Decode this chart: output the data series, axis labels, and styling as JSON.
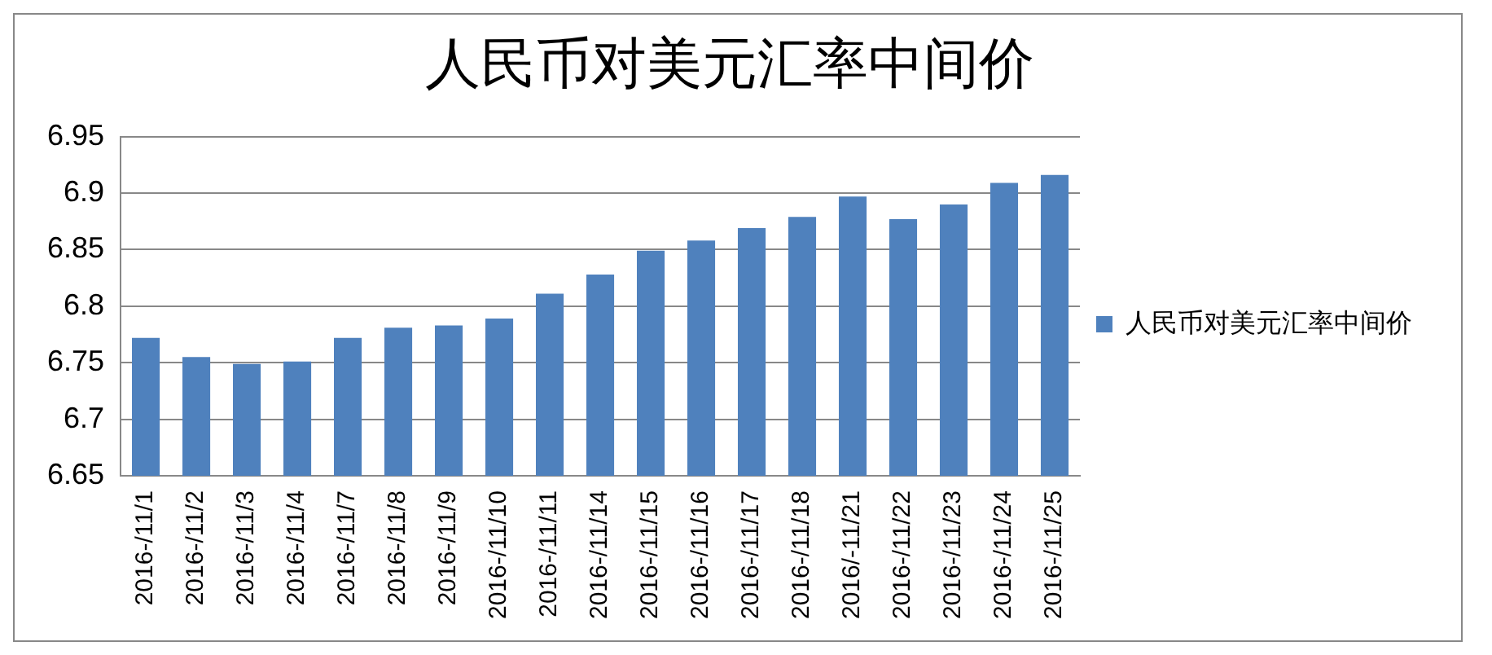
{
  "chart_data": {
    "type": "bar",
    "title": "人民币对美元汇率中间价",
    "categories": [
      "2016-/11/1",
      "2016-/11/2",
      "2016-/11/3",
      "2016-/11/4",
      "2016-/11/7",
      "2016-/11/8",
      "2016-/11/9",
      "2016-/11/10",
      "2016-/11/11",
      "2016-/11/14",
      "2016-/11/15",
      "2016-/11/16",
      "2016-/11/17",
      "2016-/11/18",
      "2016/-11/21",
      "2016-/11/22",
      "2016-/11/23",
      "2016-/11/24",
      "2016-/11/25"
    ],
    "series": [
      {
        "name": "人民币对美元汇率中间价",
        "color": "#4f81bd",
        "values": [
          6.772,
          6.755,
          6.749,
          6.751,
          6.772,
          6.781,
          6.783,
          6.789,
          6.811,
          6.828,
          6.849,
          6.858,
          6.869,
          6.879,
          6.897,
          6.877,
          6.89,
          6.909,
          6.916
        ]
      }
    ],
    "ylim": [
      6.65,
      6.95
    ],
    "yticks": [
      6.65,
      6.7,
      6.75,
      6.8,
      6.85,
      6.9,
      6.95
    ],
    "grid": "y",
    "legend": "right"
  }
}
